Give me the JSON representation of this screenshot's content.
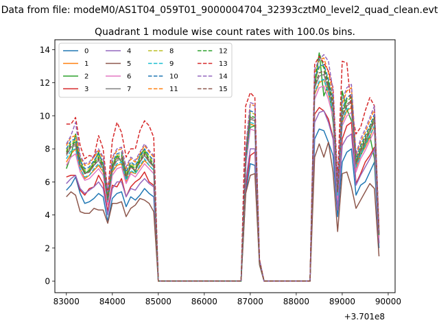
{
  "chart_data": {
    "type": "line",
    "suptitle": "Data from file: modeM0/AS1T04_059T01_9000004704_32393cztM0_level2_quad_clean.evt",
    "title": "Quadrant 1 module wise count rates with 100.0s bins.",
    "xlabel": "",
    "ylabel": "",
    "x_offset_label": "+3.701e8",
    "xlim": [
      82750,
      90150
    ],
    "ylim": [
      -0.7,
      14.6
    ],
    "xticks": [
      83000,
      84000,
      85000,
      86000,
      87000,
      88000,
      89000,
      90000
    ],
    "xtick_labels": [
      "83000",
      "84000",
      "85000",
      "86000",
      "87000",
      "88000",
      "89000",
      "90000"
    ],
    "yticks": [
      0,
      2,
      4,
      6,
      8,
      10,
      12,
      14
    ],
    "ytick_labels": [
      "0",
      "2",
      "4",
      "6",
      "8",
      "10",
      "12",
      "14"
    ],
    "legend_position": "upper-left",
    "x": [
      83000,
      83100,
      83200,
      83300,
      83400,
      83500,
      83600,
      83700,
      83800,
      83900,
      84000,
      84100,
      84200,
      84300,
      84400,
      84500,
      84600,
      84700,
      84800,
      84900,
      85000,
      85100,
      85200,
      85300,
      85400,
      85500,
      85600,
      85700,
      85800,
      85900,
      86000,
      86100,
      86200,
      86300,
      86400,
      86500,
      86600,
      86700,
      86800,
      86900,
      87000,
      87100,
      87200,
      87300,
      87400,
      87500,
      87600,
      87700,
      87800,
      87900,
      88000,
      88100,
      88200,
      88300,
      88400,
      88500,
      88600,
      88700,
      88800,
      88900,
      89000,
      89100,
      89200,
      89300,
      89400,
      89500,
      89600,
      89700,
      89800
    ],
    "series": [
      {
        "name": "0",
        "color": "#1f77b4",
        "dash": "solid",
        "values": [
          5.5,
          5.8,
          6.3,
          5.3,
          4.7,
          4.8,
          5.0,
          5.3,
          5.1,
          3.6,
          5.0,
          5.3,
          5.4,
          4.5,
          5.1,
          4.9,
          5.2,
          5.6,
          5.3,
          5.1,
          0,
          0,
          0,
          0,
          0,
          0,
          0,
          0,
          0,
          0,
          0,
          0,
          0,
          0,
          0,
          0,
          0,
          0,
          0,
          5.3,
          7.1,
          7.0,
          1.1,
          0,
          0,
          0,
          0,
          0,
          0,
          0,
          0,
          0,
          0,
          0,
          8.6,
          9.2,
          9.1,
          8.4,
          7.6,
          3.9,
          7.2,
          7.8,
          8.0,
          5.2,
          5.8,
          6.0,
          6.6,
          7.2,
          2.0
        ]
      },
      {
        "name": "1",
        "color": "#ff7f0e",
        "dash": "solid",
        "values": [
          7.2,
          7.7,
          8.0,
          6.8,
          6.2,
          6.4,
          6.7,
          7.0,
          6.6,
          4.7,
          6.6,
          7.0,
          7.1,
          6.0,
          6.6,
          6.5,
          6.9,
          7.3,
          7.0,
          6.7,
          0,
          0,
          0,
          0,
          0,
          0,
          0,
          0,
          0,
          0,
          0,
          0,
          0,
          0,
          0,
          0,
          0,
          0,
          0,
          7.0,
          9.5,
          9.4,
          1.2,
          0,
          0,
          0,
          0,
          0,
          0,
          0,
          0,
          0,
          0,
          0,
          11.3,
          12.0,
          12.2,
          11.3,
          10.2,
          5.1,
          9.6,
          10.3,
          10.5,
          6.8,
          7.6,
          8.1,
          8.7,
          9.4,
          2.7
        ]
      },
      {
        "name": "2",
        "color": "#2ca02c",
        "dash": "solid",
        "values": [
          6.8,
          7.6,
          8.9,
          7.4,
          6.5,
          6.7,
          7.2,
          7.8,
          7.0,
          4.7,
          6.9,
          7.6,
          7.2,
          6.2,
          7.0,
          6.6,
          7.6,
          8.0,
          7.2,
          7.0,
          0,
          0,
          0,
          0,
          0,
          0,
          0,
          0,
          0,
          0,
          0,
          0,
          0,
          0,
          0,
          0,
          0,
          0,
          0,
          7.0,
          9.3,
          9.4,
          1.0,
          0,
          0,
          0,
          0,
          0,
          0,
          0,
          0,
          0,
          0,
          0,
          11.6,
          13.8,
          11.2,
          11.9,
          9.6,
          5.4,
          11.5,
          10.4,
          9.7,
          7.2,
          7.6,
          8.3,
          8.8,
          7.4,
          2.8
        ]
      },
      {
        "name": "3",
        "color": "#d62728",
        "dash": "solid",
        "values": [
          6.3,
          6.4,
          6.4,
          5.5,
          5.2,
          5.6,
          5.7,
          6.4,
          5.9,
          4.2,
          5.8,
          5.7,
          6.2,
          5.1,
          5.7,
          6.0,
          6.2,
          6.6,
          6.0,
          5.8,
          0,
          0,
          0,
          0,
          0,
          0,
          0,
          0,
          0,
          0,
          0,
          0,
          0,
          0,
          0,
          0,
          0,
          0,
          0,
          5.7,
          7.6,
          7.8,
          1.1,
          0,
          0,
          0,
          0,
          0,
          0,
          0,
          0,
          0,
          0,
          0,
          10.1,
          10.5,
          10.3,
          9.8,
          8.7,
          4.3,
          8.6,
          9.4,
          9.6,
          5.9,
          6.5,
          7.2,
          7.6,
          8.1,
          2.3
        ]
      },
      {
        "name": "4",
        "color": "#9467bd",
        "dash": "solid",
        "values": [
          5.9,
          6.2,
          6.4,
          5.6,
          5.3,
          5.5,
          5.7,
          6.0,
          5.6,
          4.0,
          5.6,
          6.0,
          6.0,
          5.1,
          5.6,
          5.5,
          5.9,
          6.2,
          5.9,
          5.7,
          0,
          0,
          0,
          0,
          0,
          0,
          0,
          0,
          0,
          0,
          0,
          0,
          0,
          0,
          0,
          0,
          0,
          0,
          0,
          6.0,
          8.0,
          8.0,
          1.1,
          0,
          0,
          0,
          0,
          0,
          0,
          0,
          0,
          0,
          0,
          0,
          9.6,
          10.2,
          10.3,
          9.6,
          8.6,
          4.3,
          8.2,
          8.7,
          8.9,
          5.8,
          6.4,
          6.9,
          7.4,
          8.0,
          2.3
        ]
      },
      {
        "name": "5",
        "color": "#8c564b",
        "dash": "solid",
        "values": [
          5.1,
          5.4,
          5.2,
          4.2,
          4.1,
          4.1,
          4.4,
          4.3,
          4.3,
          3.5,
          4.7,
          4.7,
          4.8,
          3.9,
          4.4,
          4.6,
          5.0,
          4.9,
          4.7,
          4.2,
          0,
          0,
          0,
          0,
          0,
          0,
          0,
          0,
          0,
          0,
          0,
          0,
          0,
          0,
          0,
          0,
          0,
          0,
          0,
          5.3,
          6.4,
          6.5,
          1.0,
          0,
          0,
          0,
          0,
          0,
          0,
          0,
          0,
          0,
          0,
          0,
          7.5,
          8.3,
          7.5,
          8.4,
          6.6,
          3.0,
          6.5,
          6.6,
          5.7,
          4.4,
          4.9,
          5.4,
          5.9,
          5.6,
          1.5
        ]
      },
      {
        "name": "6",
        "color": "#e377c2",
        "dash": "solid",
        "values": [
          7.0,
          7.5,
          7.7,
          6.6,
          6.1,
          6.2,
          6.5,
          6.8,
          6.4,
          4.6,
          6.4,
          6.8,
          6.9,
          5.9,
          6.5,
          6.3,
          6.7,
          7.1,
          6.8,
          6.5,
          0,
          0,
          0,
          0,
          0,
          0,
          0,
          0,
          0,
          0,
          0,
          0,
          0,
          0,
          0,
          0,
          0,
          0,
          0,
          6.9,
          9.2,
          9.1,
          1.2,
          0,
          0,
          0,
          0,
          0,
          0,
          0,
          0,
          0,
          0,
          0,
          11.0,
          11.7,
          11.8,
          11.0,
          9.9,
          5.0,
          9.4,
          10.0,
          10.2,
          6.6,
          7.4,
          7.9,
          8.5,
          9.1,
          2.6
        ]
      },
      {
        "name": "7",
        "color": "#7f7f7f",
        "dash": "solid",
        "values": [
          7.6,
          8.1,
          8.2,
          7.0,
          6.5,
          6.6,
          7.0,
          7.3,
          6.8,
          4.9,
          6.8,
          7.3,
          7.4,
          6.3,
          6.9,
          6.7,
          7.2,
          7.6,
          7.2,
          6.9,
          0,
          0,
          0,
          0,
          0,
          0,
          0,
          0,
          0,
          0,
          0,
          0,
          0,
          0,
          0,
          0,
          0,
          0,
          0,
          7.3,
          9.8,
          9.7,
          1.2,
          0,
          0,
          0,
          0,
          0,
          0,
          0,
          0,
          0,
          0,
          0,
          11.7,
          12.4,
          12.5,
          11.6,
          10.5,
          5.3,
          9.9,
          10.6,
          10.8,
          7.0,
          7.8,
          8.4,
          9.0,
          9.7,
          2.8
        ]
      },
      {
        "name": "8",
        "color": "#bcbd22",
        "dash": "dashed",
        "values": [
          7.9,
          8.4,
          8.5,
          7.2,
          6.7,
          6.8,
          7.2,
          7.6,
          7.1,
          5.1,
          7.1,
          7.6,
          7.7,
          6.5,
          7.1,
          6.9,
          7.4,
          7.9,
          7.5,
          7.2,
          0,
          0,
          0,
          0,
          0,
          0,
          0,
          0,
          0,
          0,
          0,
          0,
          0,
          0,
          0,
          0,
          0,
          0,
          0,
          7.6,
          10.2,
          10.1,
          1.3,
          0,
          0,
          0,
          0,
          0,
          0,
          0,
          0,
          0,
          0,
          0,
          12.1,
          12.9,
          13.0,
          12.1,
          10.9,
          5.5,
          10.3,
          11.0,
          11.2,
          7.3,
          8.1,
          8.7,
          9.3,
          10.0,
          2.9
        ]
      },
      {
        "name": "9",
        "color": "#17becf",
        "dash": "dashed",
        "values": [
          7.4,
          7.9,
          8.0,
          6.8,
          6.3,
          6.4,
          6.8,
          7.1,
          6.7,
          4.8,
          6.7,
          7.1,
          7.2,
          6.1,
          6.7,
          6.5,
          7.0,
          7.4,
          7.0,
          6.7,
          0,
          0,
          0,
          0,
          0,
          0,
          0,
          0,
          0,
          0,
          0,
          0,
          0,
          0,
          0,
          0,
          0,
          0,
          0,
          7.1,
          9.6,
          9.5,
          1.2,
          0,
          0,
          0,
          0,
          0,
          0,
          0,
          0,
          0,
          0,
          0,
          11.4,
          12.1,
          12.2,
          11.4,
          10.2,
          5.2,
          9.7,
          10.4,
          10.5,
          6.9,
          7.6,
          8.2,
          8.8,
          9.4,
          2.7
        ]
      },
      {
        "name": "10",
        "color": "#1f77b4",
        "dash": "dashed",
        "values": [
          8.0,
          8.5,
          8.6,
          7.3,
          6.8,
          6.9,
          7.3,
          7.7,
          7.2,
          5.2,
          7.2,
          7.7,
          7.8,
          6.6,
          7.2,
          7.0,
          7.5,
          8.0,
          7.6,
          7.3,
          0,
          0,
          0,
          0,
          0,
          0,
          0,
          0,
          0,
          0,
          0,
          0,
          0,
          0,
          0,
          0,
          0,
          0,
          0,
          7.7,
          10.3,
          10.2,
          1.3,
          0,
          0,
          0,
          0,
          0,
          0,
          0,
          0,
          0,
          0,
          0,
          12.2,
          13.0,
          13.1,
          12.2,
          11.0,
          5.6,
          10.4,
          11.1,
          11.3,
          7.4,
          8.2,
          8.8,
          9.4,
          10.1,
          2.9
        ]
      },
      {
        "name": "11",
        "color": "#ff7f0e",
        "dash": "dashed",
        "values": [
          8.2,
          8.7,
          8.8,
          7.5,
          7.0,
          7.1,
          7.5,
          7.9,
          7.4,
          5.3,
          7.4,
          7.9,
          8.0,
          6.8,
          7.4,
          7.2,
          7.7,
          8.2,
          7.8,
          7.5,
          0,
          0,
          0,
          0,
          0,
          0,
          0,
          0,
          0,
          0,
          0,
          0,
          0,
          0,
          0,
          0,
          0,
          0,
          0,
          8.0,
          10.7,
          10.6,
          1.3,
          0,
          0,
          0,
          0,
          0,
          0,
          0,
          0,
          0,
          0,
          0,
          12.6,
          13.4,
          13.5,
          12.6,
          11.3,
          5.7,
          10.7,
          11.5,
          11.7,
          7.6,
          8.4,
          9.0,
          9.7,
          10.4,
          3.0
        ]
      },
      {
        "name": "12",
        "color": "#2ca02c",
        "dash": "dashed",
        "values": [
          7.8,
          8.3,
          8.4,
          7.1,
          6.6,
          6.7,
          7.1,
          7.5,
          7.0,
          5.0,
          7.0,
          7.5,
          7.6,
          6.4,
          7.0,
          6.8,
          7.3,
          7.8,
          7.4,
          7.1,
          0,
          0,
          0,
          0,
          0,
          0,
          0,
          0,
          0,
          0,
          0,
          0,
          0,
          0,
          0,
          0,
          0,
          0,
          0,
          7.5,
          10.0,
          9.9,
          1.2,
          0,
          0,
          0,
          0,
          0,
          0,
          0,
          0,
          0,
          0,
          0,
          12.0,
          13.8,
          12.9,
          12.0,
          10.8,
          5.4,
          10.2,
          10.9,
          11.1,
          7.2,
          8.0,
          8.6,
          9.2,
          9.9,
          2.8
        ]
      },
      {
        "name": "13",
        "color": "#d62728",
        "dash": "dashed",
        "values": [
          9.5,
          9.5,
          9.9,
          8.2,
          7.4,
          7.6,
          7.5,
          8.8,
          8.0,
          5.4,
          8.5,
          9.6,
          9.0,
          7.5,
          8.0,
          8.0,
          9.1,
          9.7,
          9.4,
          8.7,
          0,
          0,
          0,
          0,
          0,
          0,
          0,
          0,
          0,
          0,
          0,
          0,
          0,
          0,
          0,
          0,
          0,
          0,
          0,
          10.6,
          11.4,
          11.1,
          1.3,
          0,
          0,
          0,
          0,
          0,
          0,
          0,
          0,
          0,
          0,
          0,
          13.1,
          13.6,
          13.2,
          12.7,
          11.7,
          6.2,
          13.3,
          13.2,
          10.4,
          8.9,
          9.3,
          10.3,
          11.1,
          10.6,
          3.2
        ]
      },
      {
        "name": "14",
        "color": "#9467bd",
        "dash": "dashed",
        "values": [
          8.3,
          8.8,
          9.6,
          7.6,
          7.1,
          7.2,
          7.6,
          8.0,
          7.5,
          5.4,
          7.5,
          8.0,
          8.1,
          6.9,
          7.5,
          7.3,
          7.8,
          8.3,
          7.9,
          7.6,
          0,
          0,
          0,
          0,
          0,
          0,
          0,
          0,
          0,
          0,
          0,
          0,
          0,
          0,
          0,
          0,
          0,
          0,
          0,
          8.0,
          10.8,
          10.7,
          1.3,
          0,
          0,
          0,
          0,
          0,
          0,
          0,
          0,
          0,
          0,
          0,
          12.8,
          13.4,
          13.7,
          13.3,
          11.5,
          5.8,
          10.9,
          11.7,
          11.9,
          7.7,
          8.6,
          9.2,
          9.9,
          10.6,
          3.0
        ]
      },
      {
        "name": "15",
        "color": "#8c564b",
        "dash": "dashed",
        "values": [
          7.7,
          8.2,
          8.3,
          7.0,
          6.5,
          6.6,
          7.0,
          7.4,
          6.9,
          4.9,
          6.9,
          7.4,
          7.5,
          6.3,
          6.9,
          6.7,
          7.2,
          7.7,
          7.3,
          7.0,
          0,
          0,
          0,
          0,
          0,
          0,
          0,
          0,
          0,
          0,
          0,
          0,
          0,
          0,
          0,
          0,
          0,
          0,
          0,
          7.4,
          9.9,
          9.8,
          1.2,
          0,
          0,
          0,
          0,
          0,
          0,
          0,
          0,
          0,
          0,
          0,
          11.8,
          12.6,
          12.7,
          11.8,
          10.6,
          5.4,
          10.0,
          10.7,
          10.9,
          7.1,
          7.9,
          8.5,
          9.1,
          9.8,
          2.8
        ]
      }
    ]
  }
}
